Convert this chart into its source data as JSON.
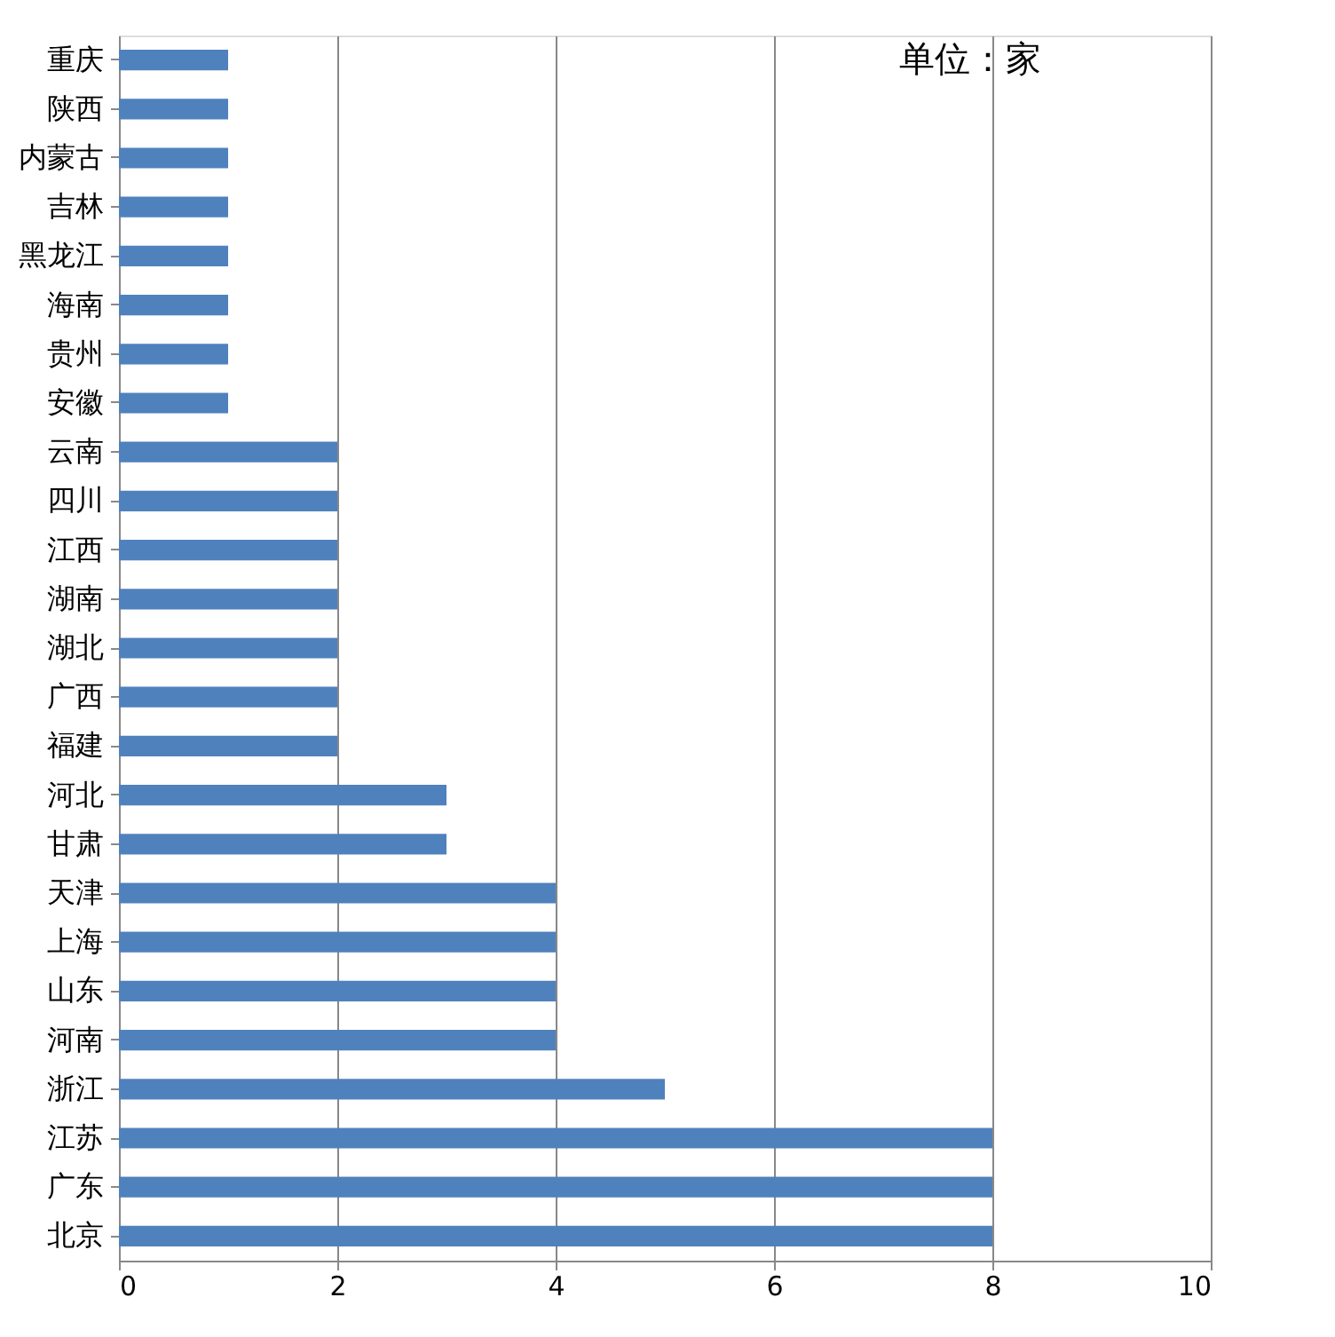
{
  "chart_data": {
    "type": "bar",
    "orientation": "horizontal",
    "categories": [
      "重庆",
      "陕西",
      "内蒙古",
      "吉林",
      "黑龙江",
      "海南",
      "贵州",
      "安徽",
      "云南",
      "四川",
      "江西",
      "湖南",
      "湖北",
      "广西",
      "福建",
      "河北",
      "甘肃",
      "天津",
      "上海",
      "山东",
      "河南",
      "浙江",
      "江苏",
      "广东",
      "北京"
    ],
    "values": [
      1,
      1,
      1,
      1,
      1,
      1,
      1,
      1,
      2,
      2,
      2,
      2,
      2,
      2,
      2,
      3,
      3,
      4,
      4,
      4,
      4,
      5,
      8,
      8,
      8
    ],
    "color": "#4f81bd",
    "xlim": [
      0,
      10
    ],
    "xticks": [
      0,
      2,
      4,
      6,
      8,
      10
    ],
    "grid": "x",
    "annotations": [
      "单位：家"
    ]
  }
}
